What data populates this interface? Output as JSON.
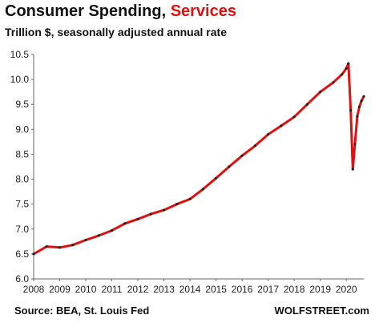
{
  "chart_data": {
    "type": "line",
    "title_part1": "Consumer Spending,",
    "title_part2": "Services",
    "subtitle": "Trillion $, seasonally adjusted annual rate",
    "source": "Source: BEA, St. Louis Fed",
    "brand": "WOLFSTREET.com",
    "ylim": [
      6.0,
      10.5
    ],
    "yticks": [
      6.0,
      6.5,
      7.0,
      7.5,
      8.0,
      8.5,
      9.0,
      9.5,
      10.0,
      10.5
    ],
    "ytick_labels": [
      "6.0",
      "6.5",
      "7.0",
      "7.5",
      "8.0",
      "8.5",
      "9.0",
      "9.5",
      "10.0",
      "10.5"
    ],
    "xlim": [
      2008.0,
      2020.67
    ],
    "xticks": [
      2008,
      2009,
      2010,
      2011,
      2012,
      2013,
      2014,
      2015,
      2016,
      2017,
      2018,
      2019,
      2020
    ],
    "xtick_labels": [
      "2008",
      "2009",
      "2010",
      "2011",
      "2012",
      "2013",
      "2014",
      "2015",
      "2016",
      "2017",
      "2018",
      "2019",
      "2020"
    ],
    "grid": false,
    "legend": "none",
    "line_color": "#e01010",
    "marker_color": "#222222",
    "series": [
      {
        "points": [
          [
            2008.0,
            6.5
          ],
          [
            2008.5,
            6.65
          ],
          [
            2009.0,
            6.63
          ],
          [
            2009.5,
            6.68
          ],
          [
            2010.0,
            6.78
          ],
          [
            2010.5,
            6.87
          ],
          [
            2011.0,
            6.97
          ],
          [
            2011.5,
            7.11
          ],
          [
            2012.0,
            7.2
          ],
          [
            2012.5,
            7.3
          ],
          [
            2013.0,
            7.38
          ],
          [
            2013.5,
            7.5
          ],
          [
            2014.0,
            7.6
          ],
          [
            2014.5,
            7.8
          ],
          [
            2015.0,
            8.02
          ],
          [
            2015.5,
            8.25
          ],
          [
            2016.0,
            8.47
          ],
          [
            2016.5,
            8.67
          ],
          [
            2017.0,
            8.9
          ],
          [
            2017.5,
            9.07
          ],
          [
            2018.0,
            9.25
          ],
          [
            2018.5,
            9.5
          ],
          [
            2019.0,
            9.75
          ],
          [
            2019.5,
            9.94
          ],
          [
            2019.83,
            10.1
          ],
          [
            2020.0,
            10.22
          ],
          [
            2020.08,
            10.32
          ],
          [
            2020.17,
            9.38
          ],
          [
            2020.25,
            8.2
          ],
          [
            2020.33,
            8.7
          ],
          [
            2020.42,
            9.26
          ],
          [
            2020.5,
            9.45
          ],
          [
            2020.58,
            9.57
          ],
          [
            2020.67,
            9.66
          ]
        ]
      }
    ]
  }
}
